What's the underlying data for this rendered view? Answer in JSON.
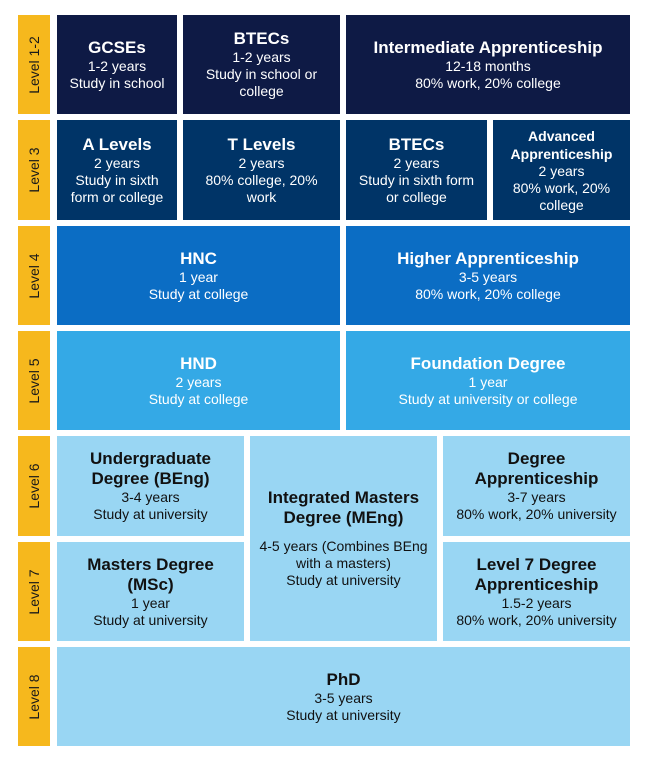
{
  "colors": {
    "level_bar": "#f6b81d",
    "level_1_2": "#0e1a45",
    "level_3": "#003467",
    "level_4": "#0b6dc4",
    "level_5": "#34a9e6",
    "level_6_8": "#99d6f3"
  },
  "levels": [
    "Level 1-2",
    "Level 3",
    "Level 4",
    "Level 5",
    "Level 6",
    "Level 7",
    "Level 8"
  ],
  "qualifications": {
    "gcses": {
      "title": "GCSEs",
      "l1": "1-2 years",
      "l2": "Study in school"
    },
    "btecs12": {
      "title": "BTECs",
      "l1": "1-2 years",
      "l2": "Study in school or college"
    },
    "intermediate": {
      "title": "Intermediate Apprenticeship",
      "l1": "12-18 months",
      "l2": "80% work, 20% college"
    },
    "alevels": {
      "title": "A Levels",
      "l1": "2 years",
      "l2": "Study in sixth form or college"
    },
    "tlevels": {
      "title": "T Levels",
      "l1": "2 years",
      "l2": "80% college, 20% work"
    },
    "btecs3": {
      "title": "BTECs",
      "l1": "2 years",
      "l2": "Study in sixth form or college"
    },
    "advanced": {
      "title": "Advanced Apprenticeship",
      "l1": "2 years",
      "l2": "80% work, 20% college"
    },
    "hnc": {
      "title": "HNC",
      "l1": "1 year",
      "l2": "Study at college"
    },
    "higher": {
      "title": "Higher Apprenticeship",
      "l1": "3-5 years",
      "l2": "80% work, 20% college"
    },
    "hnd": {
      "title": "HND",
      "l1": "2 years",
      "l2": "Study at college"
    },
    "foundation": {
      "title": "Foundation Degree",
      "l1": "1 year",
      "l2": "Study at university or college"
    },
    "ugdegree": {
      "title": "Undergraduate Degree (BEng)",
      "l1": "3-4 years",
      "l2": "Study at university"
    },
    "integrated": {
      "title": "Integrated Masters Degree (MEng)",
      "l1": "4-5 years (Combines BEng with a masters)",
      "l2": "Study at university"
    },
    "degreeapp": {
      "title": "Degree Apprenticeship",
      "l1": "3-7 years",
      "l2": "80% work, 20% university"
    },
    "masters": {
      "title": "Masters Degree (MSc)",
      "l1": "1 year",
      "l2": "Study at university"
    },
    "level7app": {
      "title": "Level 7 Degree Apprenticeship",
      "l1": "1.5-2 years",
      "l2": "80% work, 20% university"
    },
    "phd": {
      "title": "PhD",
      "l1": "3-5 years",
      "l2": "Study at university"
    }
  }
}
